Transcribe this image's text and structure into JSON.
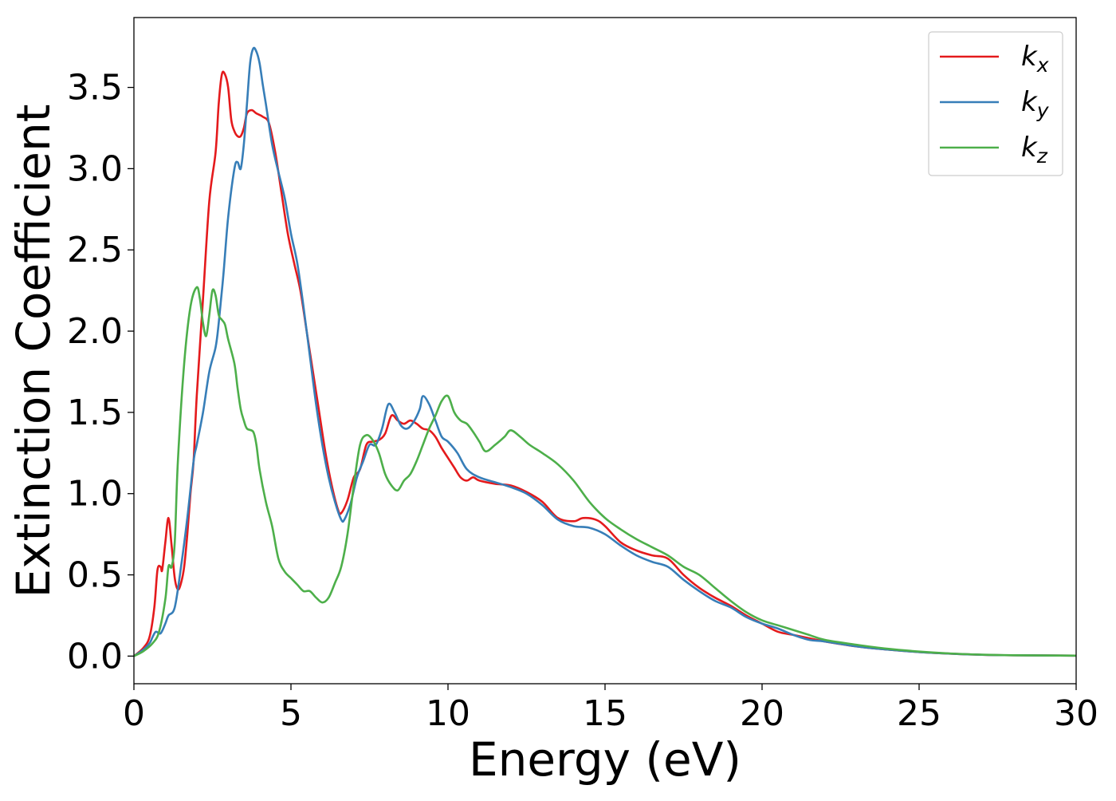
{
  "chart_data": {
    "type": "line",
    "xlabel": "Energy (eV)",
    "ylabel": "Extinction Coefficient",
    "xlim": [
      0,
      30
    ],
    "ylim": [
      -0.17,
      3.93
    ],
    "xticks": [
      0,
      5,
      10,
      15,
      20,
      25,
      30
    ],
    "yticks": [
      0.0,
      0.5,
      1.0,
      1.5,
      2.0,
      2.5,
      3.0,
      3.5
    ],
    "xtick_labels": [
      "0",
      "5",
      "10",
      "15",
      "20",
      "25",
      "30"
    ],
    "ytick_labels": [
      "0.0",
      "0.5",
      "1.0",
      "1.5",
      "2.0",
      "2.5",
      "3.0",
      "3.5"
    ],
    "grid": false,
    "legend_position": "top-right",
    "series": [
      {
        "name": "k_x",
        "label_main": "k",
        "label_sub": "x",
        "color": "#e41a1c",
        "points": [
          [
            0,
            0
          ],
          [
            0.3,
            0.05
          ],
          [
            0.5,
            0.12
          ],
          [
            0.65,
            0.3
          ],
          [
            0.75,
            0.53
          ],
          [
            0.85,
            0.55
          ],
          [
            0.9,
            0.53
          ],
          [
            1.0,
            0.7
          ],
          [
            1.1,
            0.85
          ],
          [
            1.2,
            0.68
          ],
          [
            1.3,
            0.48
          ],
          [
            1.4,
            0.41
          ],
          [
            1.5,
            0.45
          ],
          [
            1.6,
            0.55
          ],
          [
            1.7,
            0.75
          ],
          [
            1.8,
            1.0
          ],
          [
            1.9,
            1.2
          ],
          [
            2.0,
            1.6
          ],
          [
            2.2,
            2.2
          ],
          [
            2.4,
            2.8
          ],
          [
            2.6,
            3.1
          ],
          [
            2.7,
            3.4
          ],
          [
            2.8,
            3.58
          ],
          [
            2.9,
            3.58
          ],
          [
            3.0,
            3.5
          ],
          [
            3.1,
            3.3
          ],
          [
            3.2,
            3.23
          ],
          [
            3.3,
            3.2
          ],
          [
            3.4,
            3.2
          ],
          [
            3.5,
            3.25
          ],
          [
            3.6,
            3.34
          ],
          [
            3.75,
            3.36
          ],
          [
            3.9,
            3.34
          ],
          [
            4.1,
            3.32
          ],
          [
            4.3,
            3.28
          ],
          [
            4.5,
            3.1
          ],
          [
            4.7,
            2.85
          ],
          [
            4.9,
            2.6
          ],
          [
            5.1,
            2.42
          ],
          [
            5.3,
            2.25
          ],
          [
            5.5,
            2.0
          ],
          [
            5.7,
            1.75
          ],
          [
            5.9,
            1.5
          ],
          [
            6.1,
            1.25
          ],
          [
            6.3,
            1.05
          ],
          [
            6.5,
            0.9
          ],
          [
            6.6,
            0.88
          ],
          [
            6.8,
            0.96
          ],
          [
            7.0,
            1.1
          ],
          [
            7.2,
            1.15
          ],
          [
            7.4,
            1.3
          ],
          [
            7.6,
            1.32
          ],
          [
            7.8,
            1.33
          ],
          [
            8.0,
            1.37
          ],
          [
            8.2,
            1.48
          ],
          [
            8.4,
            1.45
          ],
          [
            8.6,
            1.43
          ],
          [
            8.8,
            1.45
          ],
          [
            9.0,
            1.43
          ],
          [
            9.2,
            1.4
          ],
          [
            9.4,
            1.39
          ],
          [
            9.6,
            1.35
          ],
          [
            9.8,
            1.28
          ],
          [
            10.0,
            1.22
          ],
          [
            10.2,
            1.16
          ],
          [
            10.4,
            1.1
          ],
          [
            10.6,
            1.08
          ],
          [
            10.8,
            1.1
          ],
          [
            11.0,
            1.08
          ],
          [
            11.5,
            1.06
          ],
          [
            12.0,
            1.05
          ],
          [
            12.5,
            1.01
          ],
          [
            13.0,
            0.95
          ],
          [
            13.5,
            0.85
          ],
          [
            14.0,
            0.83
          ],
          [
            14.3,
            0.85
          ],
          [
            14.7,
            0.84
          ],
          [
            15.0,
            0.8
          ],
          [
            15.5,
            0.7
          ],
          [
            16.0,
            0.65
          ],
          [
            16.5,
            0.62
          ],
          [
            17.0,
            0.6
          ],
          [
            17.5,
            0.5
          ],
          [
            18.0,
            0.42
          ],
          [
            18.5,
            0.36
          ],
          [
            19.0,
            0.31
          ],
          [
            19.5,
            0.25
          ],
          [
            20.0,
            0.2
          ],
          [
            20.5,
            0.15
          ],
          [
            21.0,
            0.13
          ],
          [
            21.5,
            0.11
          ],
          [
            22.0,
            0.09
          ],
          [
            23.0,
            0.06
          ],
          [
            24.0,
            0.04
          ],
          [
            25.0,
            0.025
          ],
          [
            26.0,
            0.015
          ],
          [
            27.0,
            0.008
          ],
          [
            28.0,
            0.005
          ],
          [
            30.0,
            0.003
          ]
        ]
      },
      {
        "name": "k_y",
        "label_main": "k",
        "label_sub": "y",
        "color": "#377eb8",
        "points": [
          [
            0,
            0
          ],
          [
            0.3,
            0.04
          ],
          [
            0.5,
            0.08
          ],
          [
            0.6,
            0.12
          ],
          [
            0.7,
            0.15
          ],
          [
            0.85,
            0.14
          ],
          [
            1.0,
            0.2
          ],
          [
            1.1,
            0.25
          ],
          [
            1.3,
            0.3
          ],
          [
            1.5,
            0.55
          ],
          [
            1.7,
            0.85
          ],
          [
            1.9,
            1.2
          ],
          [
            2.0,
            1.3
          ],
          [
            2.2,
            1.5
          ],
          [
            2.4,
            1.75
          ],
          [
            2.6,
            1.9
          ],
          [
            2.7,
            2.05
          ],
          [
            2.85,
            2.35
          ],
          [
            3.0,
            2.7
          ],
          [
            3.2,
            3.0
          ],
          [
            3.3,
            3.04
          ],
          [
            3.4,
            3.0
          ],
          [
            3.5,
            3.15
          ],
          [
            3.6,
            3.4
          ],
          [
            3.7,
            3.65
          ],
          [
            3.8,
            3.74
          ],
          [
            3.9,
            3.72
          ],
          [
            4.0,
            3.65
          ],
          [
            4.1,
            3.52
          ],
          [
            4.2,
            3.4
          ],
          [
            4.4,
            3.15
          ],
          [
            4.6,
            2.98
          ],
          [
            4.8,
            2.82
          ],
          [
            5.0,
            2.6
          ],
          [
            5.2,
            2.42
          ],
          [
            5.4,
            2.15
          ],
          [
            5.6,
            1.85
          ],
          [
            5.8,
            1.55
          ],
          [
            6.0,
            1.3
          ],
          [
            6.2,
            1.1
          ],
          [
            6.4,
            0.95
          ],
          [
            6.6,
            0.84
          ],
          [
            6.7,
            0.84
          ],
          [
            6.9,
            0.94
          ],
          [
            7.1,
            1.1
          ],
          [
            7.3,
            1.2
          ],
          [
            7.5,
            1.3
          ],
          [
            7.7,
            1.3
          ],
          [
            7.9,
            1.4
          ],
          [
            8.1,
            1.55
          ],
          [
            8.3,
            1.5
          ],
          [
            8.5,
            1.42
          ],
          [
            8.7,
            1.4
          ],
          [
            8.9,
            1.44
          ],
          [
            9.1,
            1.52
          ],
          [
            9.2,
            1.6
          ],
          [
            9.4,
            1.55
          ],
          [
            9.6,
            1.45
          ],
          [
            9.8,
            1.35
          ],
          [
            10.0,
            1.32
          ],
          [
            10.3,
            1.25
          ],
          [
            10.6,
            1.15
          ],
          [
            11.0,
            1.1
          ],
          [
            11.5,
            1.07
          ],
          [
            12.0,
            1.04
          ],
          [
            12.5,
            1.0
          ],
          [
            13.0,
            0.93
          ],
          [
            13.5,
            0.84
          ],
          [
            14.0,
            0.8
          ],
          [
            14.5,
            0.79
          ],
          [
            15.0,
            0.75
          ],
          [
            15.5,
            0.68
          ],
          [
            16.0,
            0.62
          ],
          [
            16.5,
            0.58
          ],
          [
            17.0,
            0.55
          ],
          [
            17.5,
            0.47
          ],
          [
            18.0,
            0.4
          ],
          [
            18.5,
            0.34
          ],
          [
            19.0,
            0.3
          ],
          [
            19.5,
            0.24
          ],
          [
            20.0,
            0.2
          ],
          [
            20.5,
            0.17
          ],
          [
            21.0,
            0.13
          ],
          [
            21.5,
            0.1
          ],
          [
            22.0,
            0.09
          ],
          [
            23.0,
            0.06
          ],
          [
            24.0,
            0.04
          ],
          [
            25.0,
            0.025
          ],
          [
            26.0,
            0.015
          ],
          [
            27.0,
            0.008
          ],
          [
            28.0,
            0.005
          ],
          [
            30.0,
            0.003
          ]
        ]
      },
      {
        "name": "k_z",
        "label_main": "k",
        "label_sub": "z",
        "color": "#4daf4a",
        "points": [
          [
            0,
            0
          ],
          [
            0.3,
            0.03
          ],
          [
            0.6,
            0.08
          ],
          [
            0.8,
            0.15
          ],
          [
            1.0,
            0.35
          ],
          [
            1.1,
            0.55
          ],
          [
            1.2,
            0.55
          ],
          [
            1.3,
            0.7
          ],
          [
            1.4,
            1.2
          ],
          [
            1.6,
            1.8
          ],
          [
            1.8,
            2.15
          ],
          [
            2.0,
            2.27
          ],
          [
            2.1,
            2.2
          ],
          [
            2.2,
            2.05
          ],
          [
            2.3,
            1.97
          ],
          [
            2.4,
            2.1
          ],
          [
            2.5,
            2.25
          ],
          [
            2.6,
            2.22
          ],
          [
            2.7,
            2.1
          ],
          [
            2.8,
            2.07
          ],
          [
            2.9,
            2.04
          ],
          [
            3.0,
            1.95
          ],
          [
            3.2,
            1.8
          ],
          [
            3.3,
            1.65
          ],
          [
            3.4,
            1.52
          ],
          [
            3.5,
            1.45
          ],
          [
            3.6,
            1.4
          ],
          [
            3.8,
            1.38
          ],
          [
            3.9,
            1.3
          ],
          [
            4.0,
            1.15
          ],
          [
            4.2,
            0.95
          ],
          [
            4.4,
            0.8
          ],
          [
            4.6,
            0.6
          ],
          [
            4.8,
            0.52
          ],
          [
            5.0,
            0.48
          ],
          [
            5.2,
            0.44
          ],
          [
            5.4,
            0.4
          ],
          [
            5.6,
            0.4
          ],
          [
            5.8,
            0.36
          ],
          [
            6.0,
            0.33
          ],
          [
            6.2,
            0.36
          ],
          [
            6.4,
            0.45
          ],
          [
            6.6,
            0.55
          ],
          [
            6.8,
            0.75
          ],
          [
            7.0,
            1.05
          ],
          [
            7.2,
            1.3
          ],
          [
            7.4,
            1.36
          ],
          [
            7.6,
            1.33
          ],
          [
            7.8,
            1.25
          ],
          [
            8.0,
            1.12
          ],
          [
            8.2,
            1.05
          ],
          [
            8.4,
            1.02
          ],
          [
            8.6,
            1.08
          ],
          [
            8.8,
            1.12
          ],
          [
            9.0,
            1.2
          ],
          [
            9.2,
            1.3
          ],
          [
            9.4,
            1.4
          ],
          [
            9.6,
            1.48
          ],
          [
            9.8,
            1.57
          ],
          [
            10.0,
            1.6
          ],
          [
            10.2,
            1.5
          ],
          [
            10.4,
            1.45
          ],
          [
            10.6,
            1.43
          ],
          [
            10.8,
            1.38
          ],
          [
            11.0,
            1.32
          ],
          [
            11.2,
            1.26
          ],
          [
            11.5,
            1.3
          ],
          [
            11.8,
            1.35
          ],
          [
            12.0,
            1.39
          ],
          [
            12.3,
            1.35
          ],
          [
            12.6,
            1.3
          ],
          [
            13.0,
            1.25
          ],
          [
            13.5,
            1.18
          ],
          [
            14.0,
            1.08
          ],
          [
            14.5,
            0.95
          ],
          [
            15.0,
            0.85
          ],
          [
            15.5,
            0.78
          ],
          [
            16.0,
            0.72
          ],
          [
            16.5,
            0.67
          ],
          [
            17.0,
            0.62
          ],
          [
            17.5,
            0.55
          ],
          [
            18.0,
            0.5
          ],
          [
            18.5,
            0.42
          ],
          [
            19.0,
            0.34
          ],
          [
            19.5,
            0.27
          ],
          [
            20.0,
            0.22
          ],
          [
            20.5,
            0.19
          ],
          [
            21.0,
            0.16
          ],
          [
            21.5,
            0.13
          ],
          [
            22.0,
            0.1
          ],
          [
            23.0,
            0.07
          ],
          [
            24.0,
            0.045
          ],
          [
            25.0,
            0.028
          ],
          [
            26.0,
            0.016
          ],
          [
            27.0,
            0.009
          ],
          [
            28.0,
            0.005
          ],
          [
            30.0,
            0.003
          ]
        ]
      }
    ]
  }
}
